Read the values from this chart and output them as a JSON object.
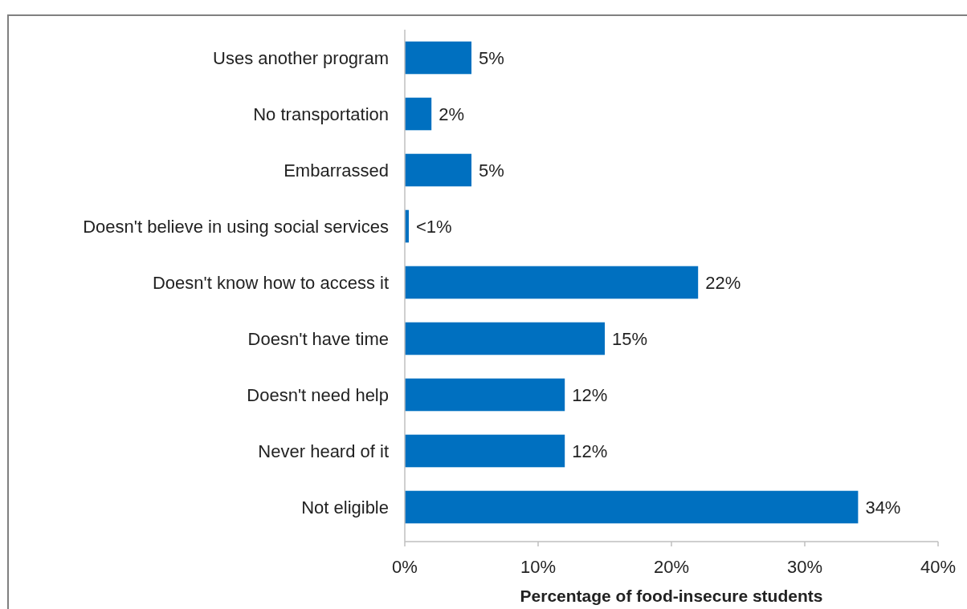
{
  "chart_data": {
    "type": "bar",
    "orientation": "horizontal",
    "xlabel": "Percentage of food-insecure students",
    "categories": [
      "Uses another program",
      "No transportation",
      "Embarrassed",
      "Doesn't believe in using social services",
      "Doesn't know how to access it",
      "Doesn't have time",
      "Doesn't need help",
      "Never heard of it",
      "Not eligible"
    ],
    "values": [
      5,
      2,
      5,
      0.3,
      22,
      15,
      12,
      12,
      34
    ],
    "value_labels": [
      "5%",
      "2%",
      "5%",
      "<1%",
      "22%",
      "15%",
      "12%",
      "12%",
      "34%"
    ],
    "color": "#0070c0",
    "xlim": [
      0,
      40
    ],
    "xticks": [
      {
        "value": 0,
        "label": "0%"
      },
      {
        "value": 10,
        "label": "10%"
      },
      {
        "value": 20,
        "label": "20%"
      },
      {
        "value": 30,
        "label": "30%"
      },
      {
        "value": 40,
        "label": "40%"
      }
    ],
    "grid": false
  }
}
